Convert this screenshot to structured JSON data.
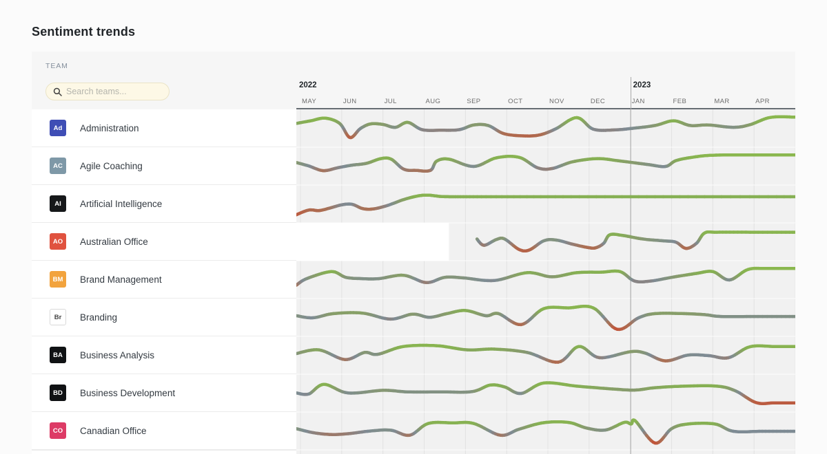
{
  "page": {
    "title": "Sentiment trends"
  },
  "sidebar": {
    "column_label": "TEAM",
    "search": {
      "placeholder": "Search teams...",
      "icon": "search-icon"
    },
    "teams": [
      {
        "initials": "Ad",
        "name": "Administration",
        "color": "#3f4eb5",
        "text_color": "#ffffff"
      },
      {
        "initials": "AC",
        "name": "Agile Coaching",
        "color": "#7e98a7",
        "text_color": "#ffffff"
      },
      {
        "initials": "AI",
        "name": "Artificial Intelligence",
        "color": "#16181a",
        "text_color": "#ffffff"
      },
      {
        "initials": "AO",
        "name": "Australian Office",
        "color": "#e0523f",
        "text_color": "#ffffff",
        "highlighted": true
      },
      {
        "initials": "BM",
        "name": "Brand Management",
        "color": "#f2a33d",
        "text_color": "#ffffff"
      },
      {
        "initials": "Br",
        "name": "Branding",
        "color": "#ffffff",
        "text_color": "#444444",
        "border": "#d9d9d9"
      },
      {
        "initials": "BA",
        "name": "Business Analysis",
        "color": "#101214",
        "text_color": "#ffffff"
      },
      {
        "initials": "BD",
        "name": "Business Development",
        "color": "#101214",
        "text_color": "#ffffff"
      },
      {
        "initials": "CO",
        "name": "Canadian Office",
        "color": "#dd3b66",
        "text_color": "#ffffff"
      }
    ]
  },
  "chart_data": {
    "type": "line",
    "title": "Sentiment trends per team, May 2022 - Apr 2023",
    "x_axis": {
      "unit": "month",
      "months": [
        "MAY",
        "JUN",
        "JUL",
        "AUG",
        "SEP",
        "OCT",
        "NOV",
        "DEC",
        "JAN",
        "FEB",
        "MAR",
        "APR"
      ],
      "years": [
        {
          "label": "2022",
          "at_month": 0
        },
        {
          "label": "2023",
          "at_month": 8
        }
      ]
    },
    "value_range": [
      0,
      1
    ],
    "legend": {
      "positive": "#8cba4d",
      "neutral": "#7e8b94",
      "negative": "#c94b30"
    },
    "highlight": {
      "row_index": 3,
      "band_end_month": 3.6
    },
    "series": [
      {
        "name": "Administration",
        "points": [
          [
            -0.1,
            0.7
          ],
          [
            0.25,
            0.8
          ],
          [
            0.6,
            0.9
          ],
          [
            0.95,
            0.7
          ],
          [
            1.2,
            0.16
          ],
          [
            1.45,
            0.5
          ],
          [
            1.7,
            0.68
          ],
          [
            2.0,
            0.66
          ],
          [
            2.3,
            0.55
          ],
          [
            2.6,
            0.74
          ],
          [
            2.95,
            0.46
          ],
          [
            3.4,
            0.44
          ],
          [
            3.85,
            0.46
          ],
          [
            4.2,
            0.64
          ],
          [
            4.55,
            0.62
          ],
          [
            4.95,
            0.3
          ],
          [
            5.5,
            0.22
          ],
          [
            5.85,
            0.28
          ],
          [
            6.2,
            0.5
          ],
          [
            6.7,
            0.92
          ],
          [
            7.1,
            0.48
          ],
          [
            7.6,
            0.45
          ],
          [
            8.1,
            0.52
          ],
          [
            8.6,
            0.62
          ],
          [
            9.05,
            0.8
          ],
          [
            9.45,
            0.62
          ],
          [
            9.9,
            0.64
          ],
          [
            10.5,
            0.55
          ],
          [
            10.9,
            0.65
          ],
          [
            11.4,
            0.93
          ],
          [
            12,
            0.94
          ]
        ]
      },
      {
        "name": "Agile Coaching",
        "points": [
          [
            -0.1,
            0.65
          ],
          [
            0.2,
            0.52
          ],
          [
            0.55,
            0.34
          ],
          [
            0.9,
            0.45
          ],
          [
            1.25,
            0.55
          ],
          [
            1.6,
            0.62
          ],
          [
            1.95,
            0.8
          ],
          [
            2.2,
            0.78
          ],
          [
            2.5,
            0.4
          ],
          [
            2.8,
            0.35
          ],
          [
            3.15,
            0.35
          ],
          [
            3.3,
            0.7
          ],
          [
            3.6,
            0.78
          ],
          [
            4.2,
            0.5
          ],
          [
            4.75,
            0.83
          ],
          [
            5.3,
            0.85
          ],
          [
            5.75,
            0.45
          ],
          [
            6.1,
            0.42
          ],
          [
            6.6,
            0.68
          ],
          [
            7.2,
            0.8
          ],
          [
            7.7,
            0.72
          ],
          [
            8.4,
            0.58
          ],
          [
            8.85,
            0.5
          ],
          [
            9.1,
            0.72
          ],
          [
            9.5,
            0.85
          ],
          [
            10.0,
            0.93
          ],
          [
            11.0,
            0.94
          ],
          [
            12,
            0.94
          ]
        ]
      },
      {
        "name": "Artificial Intelligence",
        "points": [
          [
            -0.1,
            0.1
          ],
          [
            0.2,
            0.28
          ],
          [
            0.45,
            0.26
          ],
          [
            0.7,
            0.35
          ],
          [
            1.0,
            0.48
          ],
          [
            1.25,
            0.5
          ],
          [
            1.5,
            0.34
          ],
          [
            1.75,
            0.32
          ],
          [
            2.1,
            0.45
          ],
          [
            2.5,
            0.68
          ],
          [
            2.85,
            0.82
          ],
          [
            3.1,
            0.85
          ],
          [
            3.4,
            0.8
          ],
          [
            3.7,
            0.79
          ],
          [
            4.5,
            0.79
          ],
          [
            6.0,
            0.79
          ],
          [
            8.0,
            0.79
          ],
          [
            10.0,
            0.79
          ],
          [
            12,
            0.79
          ]
        ]
      },
      {
        "name": "Australian Office",
        "points": [
          [
            4.28,
            0.62
          ],
          [
            4.45,
            0.38
          ],
          [
            4.75,
            0.6
          ],
          [
            4.95,
            0.62
          ],
          [
            5.3,
            0.22
          ],
          [
            5.55,
            0.2
          ],
          [
            5.9,
            0.55
          ],
          [
            6.2,
            0.58
          ],
          [
            6.6,
            0.42
          ],
          [
            6.95,
            0.3
          ],
          [
            7.15,
            0.28
          ],
          [
            7.35,
            0.45
          ],
          [
            7.5,
            0.78
          ],
          [
            7.8,
            0.76
          ],
          [
            8.3,
            0.62
          ],
          [
            8.8,
            0.55
          ],
          [
            9.1,
            0.5
          ],
          [
            9.35,
            0.26
          ],
          [
            9.6,
            0.45
          ],
          [
            9.8,
            0.85
          ],
          [
            10.1,
            0.88
          ],
          [
            11.0,
            0.88
          ],
          [
            12,
            0.88
          ]
        ]
      },
      {
        "name": "Brand Management",
        "points": [
          [
            -0.1,
            0.3
          ],
          [
            0.15,
            0.55
          ],
          [
            0.75,
            0.82
          ],
          [
            1.1,
            0.6
          ],
          [
            1.5,
            0.55
          ],
          [
            1.9,
            0.55
          ],
          [
            2.5,
            0.68
          ],
          [
            3.05,
            0.4
          ],
          [
            3.5,
            0.6
          ],
          [
            3.95,
            0.58
          ],
          [
            4.7,
            0.48
          ],
          [
            5.5,
            0.78
          ],
          [
            6.1,
            0.62
          ],
          [
            6.7,
            0.78
          ],
          [
            7.3,
            0.8
          ],
          [
            7.75,
            0.82
          ],
          [
            8.1,
            0.46
          ],
          [
            8.5,
            0.46
          ],
          [
            9.0,
            0.6
          ],
          [
            9.6,
            0.75
          ],
          [
            10.0,
            0.82
          ],
          [
            10.4,
            0.5
          ],
          [
            10.85,
            0.9
          ],
          [
            11.3,
            0.94
          ],
          [
            12,
            0.94
          ]
        ]
      },
      {
        "name": "Branding",
        "points": [
          [
            -0.1,
            0.58
          ],
          [
            0.3,
            0.5
          ],
          [
            0.8,
            0.66
          ],
          [
            1.5,
            0.68
          ],
          [
            2.18,
            0.45
          ],
          [
            2.72,
            0.64
          ],
          [
            3.13,
            0.52
          ],
          [
            3.55,
            0.66
          ],
          [
            4.0,
            0.78
          ],
          [
            4.5,
            0.58
          ],
          [
            4.8,
            0.66
          ],
          [
            5.35,
            0.24
          ],
          [
            5.9,
            0.85
          ],
          [
            6.5,
            0.88
          ],
          [
            7.1,
            0.88
          ],
          [
            7.68,
            0.06
          ],
          [
            8.2,
            0.5
          ],
          [
            8.6,
            0.66
          ],
          [
            9.3,
            0.66
          ],
          [
            9.8,
            0.62
          ],
          [
            10.2,
            0.55
          ],
          [
            11.0,
            0.55
          ],
          [
            12,
            0.55
          ]
        ]
      },
      {
        "name": "Business Analysis",
        "points": [
          [
            -0.1,
            0.58
          ],
          [
            0.45,
            0.72
          ],
          [
            1.08,
            0.35
          ],
          [
            1.55,
            0.62
          ],
          [
            1.87,
            0.55
          ],
          [
            2.5,
            0.85
          ],
          [
            3.3,
            0.88
          ],
          [
            4.05,
            0.72
          ],
          [
            4.7,
            0.75
          ],
          [
            5.5,
            0.62
          ],
          [
            6.25,
            0.25
          ],
          [
            6.75,
            0.85
          ],
          [
            7.25,
            0.42
          ],
          [
            8.0,
            0.65
          ],
          [
            8.35,
            0.6
          ],
          [
            8.85,
            0.3
          ],
          [
            9.4,
            0.52
          ],
          [
            9.9,
            0.5
          ],
          [
            10.38,
            0.42
          ],
          [
            10.9,
            0.84
          ],
          [
            11.5,
            0.85
          ],
          [
            12,
            0.85
          ]
        ]
      },
      {
        "name": "Business Development",
        "points": [
          [
            -0.1,
            0.52
          ],
          [
            0.2,
            0.48
          ],
          [
            0.57,
            0.85
          ],
          [
            1.15,
            0.52
          ],
          [
            2.0,
            0.62
          ],
          [
            2.6,
            0.56
          ],
          [
            3.4,
            0.56
          ],
          [
            4.16,
            0.57
          ],
          [
            4.6,
            0.82
          ],
          [
            4.95,
            0.75
          ],
          [
            5.35,
            0.5
          ],
          [
            5.9,
            0.9
          ],
          [
            6.7,
            0.78
          ],
          [
            7.5,
            0.68
          ],
          [
            8.1,
            0.63
          ],
          [
            8.6,
            0.72
          ],
          [
            9.3,
            0.78
          ],
          [
            10.1,
            0.78
          ],
          [
            10.55,
            0.6
          ],
          [
            11.05,
            0.15
          ],
          [
            11.5,
            0.14
          ],
          [
            12,
            0.14
          ]
        ]
      },
      {
        "name": "Canadian Office",
        "points": [
          [
            -0.1,
            0.6
          ],
          [
            0.3,
            0.45
          ],
          [
            0.7,
            0.38
          ],
          [
            1.1,
            0.4
          ],
          [
            1.75,
            0.52
          ],
          [
            2.2,
            0.54
          ],
          [
            2.65,
            0.35
          ],
          [
            3.1,
            0.8
          ],
          [
            3.7,
            0.82
          ],
          [
            4.2,
            0.8
          ],
          [
            4.85,
            0.35
          ],
          [
            5.3,
            0.58
          ],
          [
            5.9,
            0.83
          ],
          [
            6.5,
            0.84
          ],
          [
            6.95,
            0.62
          ],
          [
            7.4,
            0.55
          ],
          [
            7.85,
            0.84
          ],
          [
            8.02,
            0.78
          ],
          [
            8.12,
            0.9
          ],
          [
            8.6,
            0.05
          ],
          [
            9.0,
            0.6
          ],
          [
            9.4,
            0.78
          ],
          [
            10.05,
            0.78
          ],
          [
            10.5,
            0.5
          ],
          [
            11.2,
            0.5
          ],
          [
            12,
            0.5
          ]
        ]
      }
    ]
  }
}
